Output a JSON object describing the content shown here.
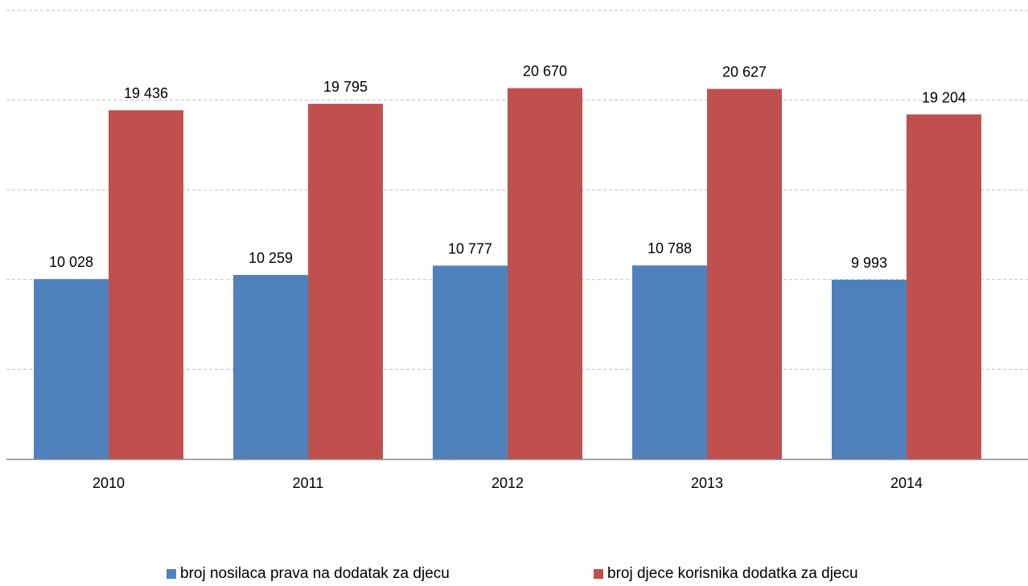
{
  "chart_data": {
    "type": "bar",
    "categories": [
      "2010",
      "2011",
      "2012",
      "2013",
      "2014"
    ],
    "series": [
      {
        "name": "broj nosilaca prava na dodatak za djecu",
        "color": "#4F81BD",
        "values": [
          10028,
          10259,
          10777,
          10788,
          9993
        ],
        "labels": [
          "10 028",
          "10 259",
          "10 777",
          "10 788",
          "9 993"
        ]
      },
      {
        "name": "broj djece korisnika dodatka za djecu",
        "color": "#C0504D",
        "values": [
          19436,
          19795,
          20670,
          20627,
          19204
        ],
        "labels": [
          "19 436",
          "19 795",
          "20 670",
          "20 627",
          "19 204"
        ]
      }
    ],
    "title": "",
    "xlabel": "",
    "ylabel": "",
    "ylim": [
      0,
      25000
    ],
    "grid": true,
    "legend": "bottom"
  }
}
